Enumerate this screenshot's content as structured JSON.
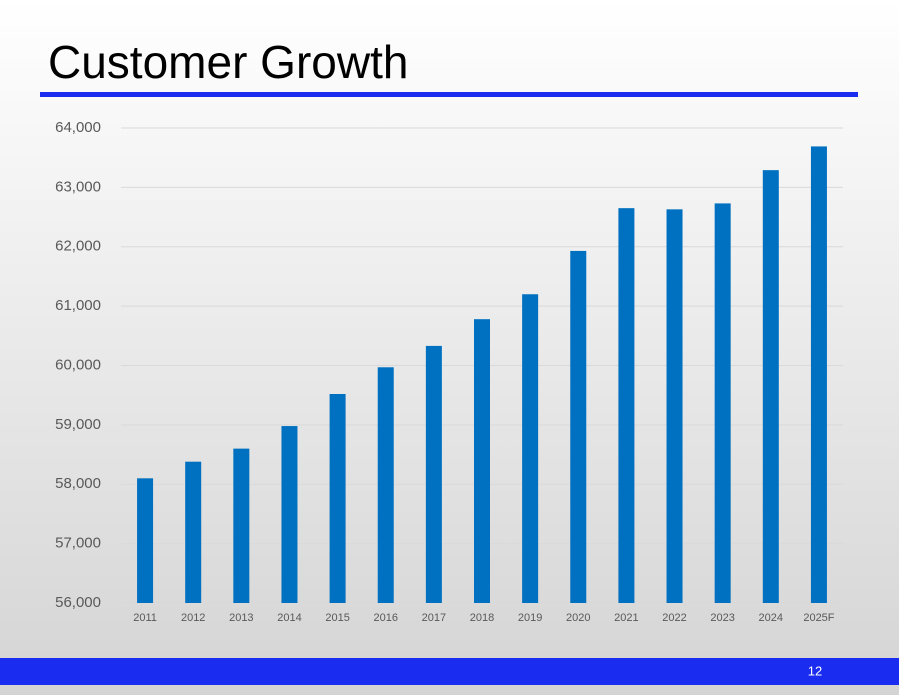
{
  "chart_data": {
    "type": "bar",
    "title": "Customer Growth",
    "categories": [
      "2011",
      "2012",
      "2013",
      "2014",
      "2015",
      "2016",
      "2017",
      "2018",
      "2019",
      "2020",
      "2021",
      "2022",
      "2023",
      "2024",
      "2025F"
    ],
    "values": [
      58100,
      58380,
      58600,
      58980,
      59520,
      59970,
      60330,
      60780,
      61200,
      61930,
      62650,
      62630,
      62730,
      63290,
      63690
    ],
    "color": "#0070c0",
    "ylim": [
      56000,
      64000
    ],
    "yticks": [
      {
        "value": 56000,
        "label": "56,000"
      },
      {
        "value": 57000,
        "label": "57,000"
      },
      {
        "value": 58000,
        "label": "58,000"
      },
      {
        "value": 59000,
        "label": "59,000"
      },
      {
        "value": 60000,
        "label": "60,000"
      },
      {
        "value": 61000,
        "label": "61,000"
      },
      {
        "value": 62000,
        "label": "62,000"
      },
      {
        "value": 63000,
        "label": "63,000"
      },
      {
        "value": 64000,
        "label": "64,000"
      }
    ],
    "grid": true
  },
  "page_number": "12"
}
